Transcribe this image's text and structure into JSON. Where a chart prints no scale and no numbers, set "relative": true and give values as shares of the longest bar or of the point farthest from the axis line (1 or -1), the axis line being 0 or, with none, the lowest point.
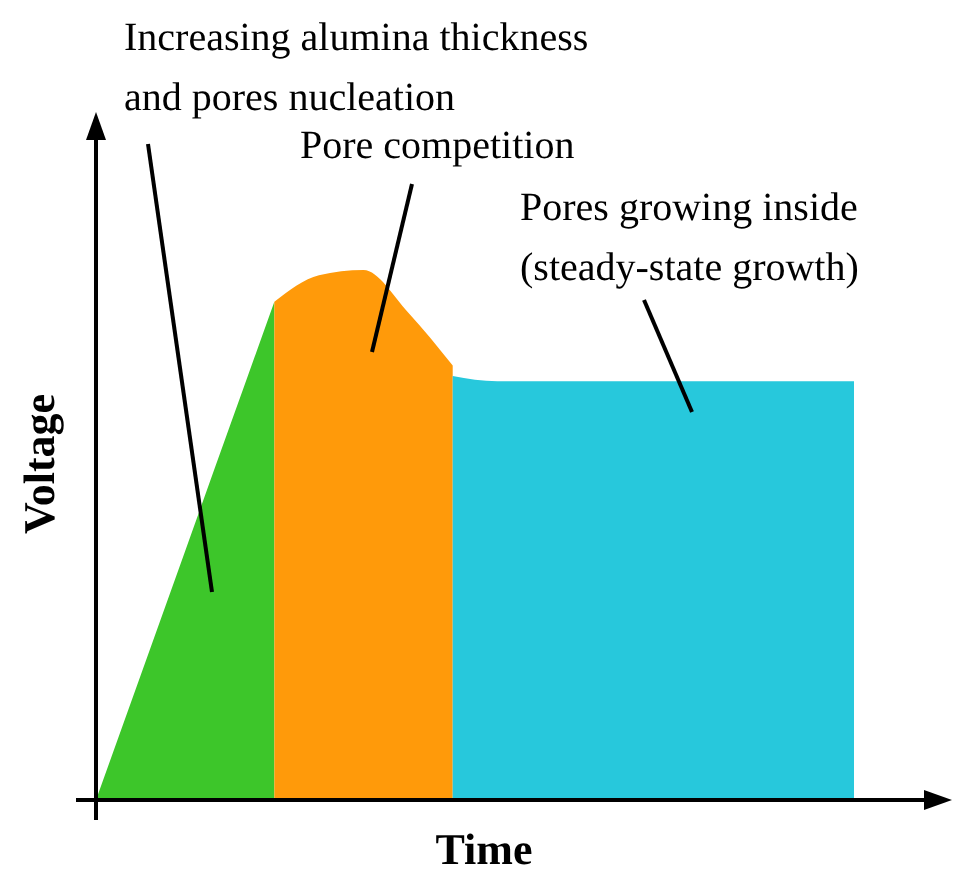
{
  "chart_data": {
    "type": "area",
    "relative": true,
    "xlabel": "Time",
    "ylabel": "Voltage",
    "categories": [
      null,
      null,
      null,
      null,
      null,
      null,
      null,
      null,
      null,
      null,
      null,
      null,
      null,
      null,
      null,
      null,
      null,
      null
    ],
    "series": [
      {
        "color": "#3dc62a",
        "values": [
          0,
          0.235,
          0.47,
          0.705,
          0.94,
          null,
          null,
          null,
          null,
          null,
          null,
          null,
          null,
          null,
          null,
          null,
          null,
          null
        ]
      },
      {
        "color": "#ff9a0a",
        "values": [
          null,
          null,
          null,
          null,
          0.94,
          0.99,
          1.0,
          0.92,
          0.82,
          null,
          null,
          null,
          null,
          null,
          null,
          null,
          null,
          null
        ]
      },
      {
        "color": "#27c8dc",
        "values": [
          null,
          null,
          null,
          null,
          null,
          null,
          null,
          null,
          0.8,
          0.79,
          0.79,
          0.79,
          0.79,
          0.79,
          0.79,
          0.79,
          0.79,
          0.79
        ]
      }
    ],
    "annotations": [
      "Increasing alumina thickness\nand pores nucleation",
      "Pore competition",
      "Pores growing inside\n(steady-state growth)"
    ]
  }
}
